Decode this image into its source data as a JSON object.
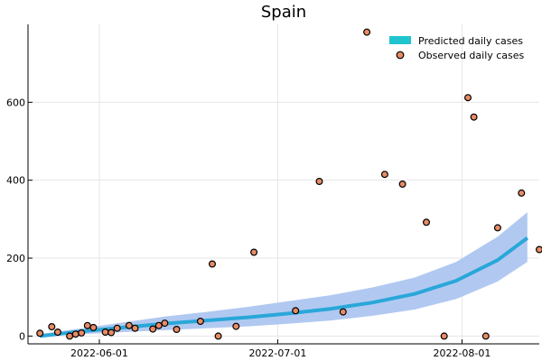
{
  "chart_data": {
    "type": "line",
    "title": "Spain",
    "xlabel": "",
    "ylabel": "",
    "x_is_date": true,
    "xlim": [
      "2022-05-20",
      "2022-08-14"
    ],
    "ylim": [
      -20,
      800
    ],
    "x_ticks": [
      "2022-06-01",
      "2022-07-01",
      "2022-08-01"
    ],
    "y_ticks": [
      0,
      200,
      400,
      600
    ],
    "grid": true,
    "legend_position": "top-right",
    "colors": {
      "predicted_line": "#2aa7d9",
      "predicted_band": "#a9c3f0",
      "observed_fill": "#e88b66",
      "observed_edge": "#000000"
    },
    "series": [
      {
        "name": "Predicted daily cases",
        "kind": "line_with_band",
        "x": [
          "2022-05-22",
          "2022-05-29",
          "2022-06-05",
          "2022-06-12",
          "2022-06-19",
          "2022-06-26",
          "2022-07-03",
          "2022-07-10",
          "2022-07-17",
          "2022-07-24",
          "2022-07-31",
          "2022-08-07",
          "2022-08-12"
        ],
        "y": [
          0,
          12,
          22,
          32,
          40,
          48,
          58,
          70,
          86,
          108,
          142,
          195,
          252
        ],
        "lower": [
          0,
          5,
          10,
          15,
          20,
          25,
          32,
          40,
          52,
          68,
          95,
          140,
          190
        ],
        "upper": [
          5,
          20,
          35,
          50,
          62,
          75,
          90,
          105,
          125,
          150,
          190,
          255,
          318
        ]
      },
      {
        "name": "Observed daily cases",
        "kind": "scatter",
        "x": [
          "2022-05-22",
          "2022-05-24",
          "2022-05-25",
          "2022-05-27",
          "2022-05-28",
          "2022-05-29",
          "2022-05-30",
          "2022-05-31",
          "2022-06-02",
          "2022-06-03",
          "2022-06-04",
          "2022-06-06",
          "2022-06-07",
          "2022-06-10",
          "2022-06-11",
          "2022-06-12",
          "2022-06-14",
          "2022-06-18",
          "2022-06-20",
          "2022-06-21",
          "2022-06-24",
          "2022-06-27",
          "2022-07-04",
          "2022-07-08",
          "2022-07-12",
          "2022-07-16",
          "2022-07-19",
          "2022-07-22",
          "2022-07-26",
          "2022-07-29",
          "2022-08-02",
          "2022-08-03",
          "2022-08-05",
          "2022-08-07",
          "2022-08-11",
          "2022-08-14"
        ],
        "y": [
          7,
          24,
          10,
          0,
          5,
          8,
          27,
          22,
          10,
          9,
          20,
          27,
          20,
          18,
          27,
          33,
          17,
          38,
          185,
          0,
          25,
          215,
          65,
          397,
          62,
          780,
          415,
          390,
          292,
          0,
          612,
          562,
          0,
          278,
          367,
          222
        ]
      }
    ]
  }
}
